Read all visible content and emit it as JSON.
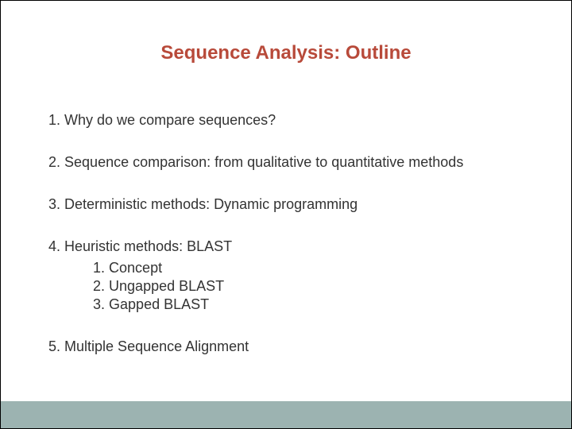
{
  "slide": {
    "title": "Sequence Analysis: Outline",
    "title_color": "#b84a3a",
    "title_fontsize": 24,
    "item_fontsize": 18,
    "text_color": "#333333",
    "background_color": "#ffffff",
    "border_color": "#000000",
    "footer_bar": {
      "color": "#9cb3b1",
      "height": 34
    },
    "items": [
      {
        "n": "1.",
        "text": "Why do we compare sequences?"
      },
      {
        "n": "2.",
        "text": "Sequence comparison: from qualitative to quantitative methods"
      },
      {
        "n": "3.",
        "text": "Deterministic methods: Dynamic programming"
      },
      {
        "n": "4.",
        "text": "Heuristic methods: BLAST",
        "sub": [
          {
            "n": "1.",
            "text": "Concept"
          },
          {
            "n": "2.",
            "text": "Ungapped BLAST"
          },
          {
            "n": "3.",
            "text": "Gapped BLAST"
          }
        ]
      },
      {
        "n": "5.",
        "text": "Multiple Sequence Alignment"
      }
    ]
  }
}
